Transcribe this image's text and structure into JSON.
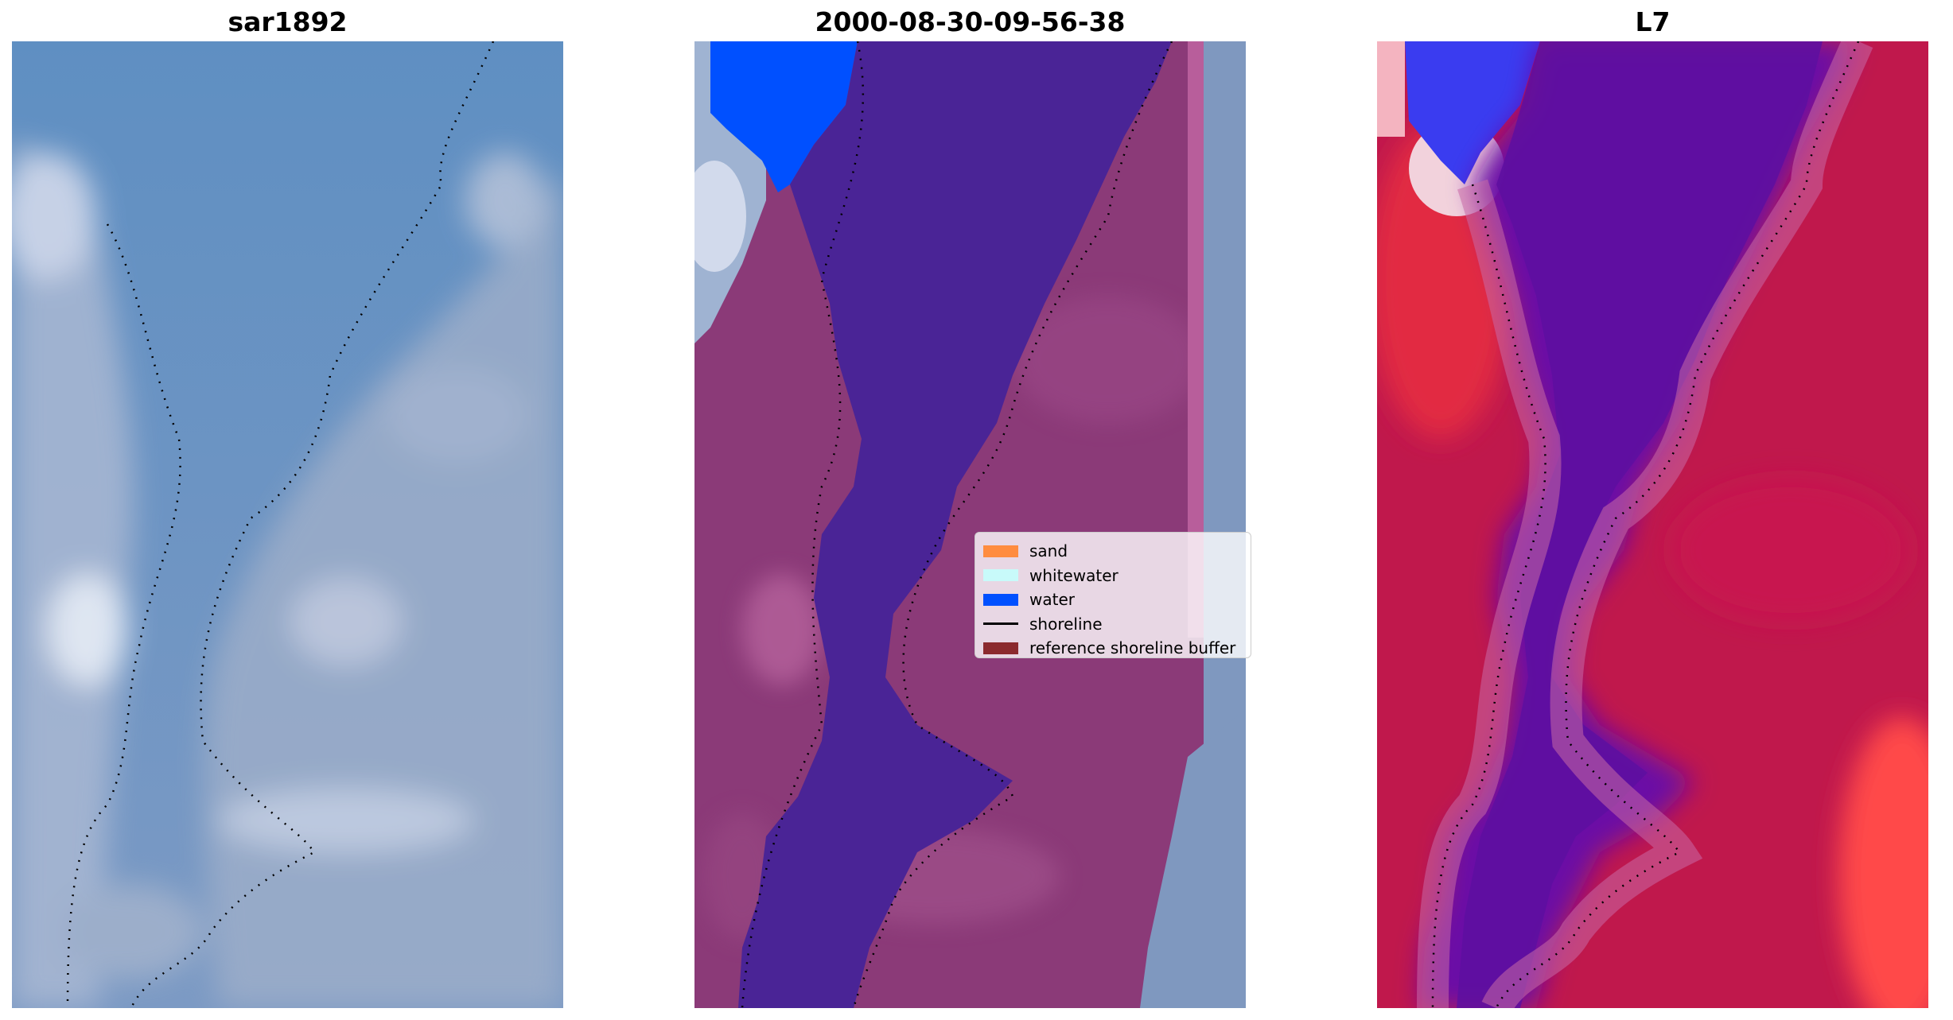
{
  "panels": [
    {
      "title": "sar1892"
    },
    {
      "title": "2000-08-30-09-56-38"
    },
    {
      "title": "L7"
    }
  ],
  "legend": {
    "items": [
      {
        "label": "sand",
        "color": "#ff8c3f",
        "kind": "patch"
      },
      {
        "label": "whitewater",
        "color": "#c8fafa",
        "kind": "patch"
      },
      {
        "label": "water",
        "color": "#0050ff",
        "kind": "patch"
      },
      {
        "label": "shoreline",
        "color": "#000000",
        "kind": "line"
      },
      {
        "label": "reference shoreline buffer",
        "color": "#8b2a2e",
        "kind": "patch"
      }
    ]
  },
  "colors": {
    "rgb_water": "#4a7fb8",
    "rgb_land": "#93a8c4",
    "class_water": "#4a2496",
    "class_land": "#8b3a78",
    "mndwi_water": "#6a10a6",
    "mndwi_land": "#c0184c"
  }
}
